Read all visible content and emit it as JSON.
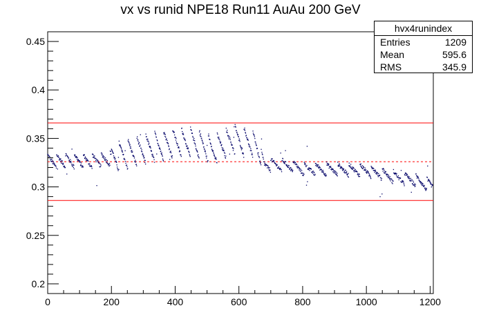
{
  "chart_data": {
    "type": "scatter",
    "title": "vx vs runid NPE18 Run11 AuAu 200 GeV",
    "xlabel": "",
    "ylabel": "",
    "xlim": [
      0,
      1210
    ],
    "ylim": [
      0.19,
      0.46
    ],
    "x_ticks": [
      0,
      200,
      400,
      600,
      800,
      1000,
      1200
    ],
    "y_ticks": [
      0.2,
      0.25,
      0.3,
      0.35,
      0.4,
      0.45
    ],
    "x_tick_labels": [
      "0",
      "200",
      "400",
      "600",
      "800",
      "1000",
      "1200"
    ],
    "y_tick_labels": [
      "0.2",
      "0.25",
      "0.3",
      "0.35",
      "0.4",
      "0.45"
    ],
    "reference_lines": {
      "mean": 0.326,
      "upper": 0.366,
      "lower": 0.286
    },
    "colors": {
      "points": "#000066",
      "lines": "#ff0000"
    },
    "stats": {
      "name": "hvx4runindex",
      "rows": [
        {
          "label": "Entries",
          "value": "1209"
        },
        {
          "label": "Mean",
          "value": "595.6"
        },
        {
          "label": "RMS",
          "value": "345.9"
        }
      ]
    },
    "trend": [
      [
        0,
        0.326
      ],
      [
        60,
        0.327
      ],
      [
        130,
        0.326
      ],
      [
        160,
        0.327
      ],
      [
        220,
        0.33
      ],
      [
        300,
        0.338
      ],
      [
        400,
        0.345
      ],
      [
        460,
        0.345
      ],
      [
        520,
        0.337
      ],
      [
        580,
        0.348
      ],
      [
        640,
        0.345
      ],
      [
        670,
        0.333
      ],
      [
        680,
        0.323
      ],
      [
        760,
        0.322
      ],
      [
        800,
        0.318
      ],
      [
        900,
        0.318
      ],
      [
        1000,
        0.317
      ],
      [
        1060,
        0.312
      ],
      [
        1100,
        0.309
      ],
      [
        1150,
        0.307
      ],
      [
        1209,
        0.3
      ]
    ],
    "n_points": 1209
  }
}
